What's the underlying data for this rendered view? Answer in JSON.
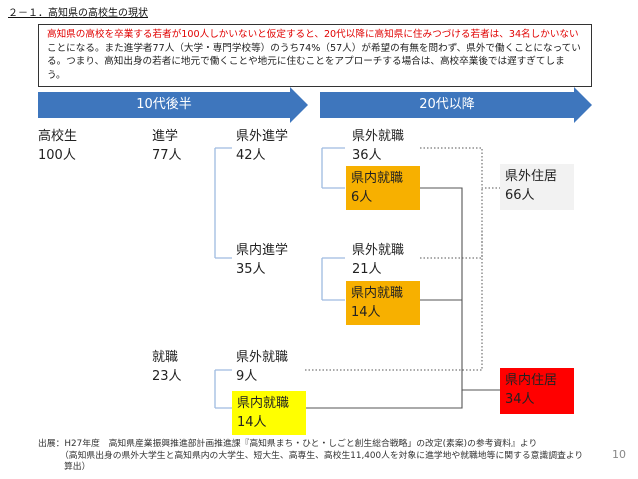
{
  "title": "２－１．高知県の高校生の現状",
  "summary": {
    "red_part": "高知県の高校を卒業する若者が100人しかいないと仮定すると、20代以降に高知県に住みつづける若者は、34名しかいない",
    "rest": "ことになる。また進学者77人（大学・専門学校等）のうち74%（57人）が希望の有無を問わず、県外で働くことになっている。つまり、高知出身の若者に地元で働くことや地元に住むことをアプローチする場合は、高校卒業後では遅すぎてしまう。"
  },
  "arrows": {
    "first": "10代後半",
    "second": "20代以降"
  },
  "nodes": {
    "hs": {
      "name": "高校生",
      "count": "100人"
    },
    "adv": {
      "name": "進学",
      "count": "77人"
    },
    "job": {
      "name": "就職",
      "count": "23人"
    },
    "out_adv": {
      "name": "県外進学",
      "count": "42人"
    },
    "in_adv": {
      "name": "県内進学",
      "count": "35人"
    },
    "out_job": {
      "name": "県外就職",
      "count": "9人"
    },
    "in_job": {
      "name": "県内就職",
      "count": "14人"
    },
    "o_o_job": {
      "name": "県外就職",
      "count": "36人"
    },
    "o_i_job": {
      "name": "県内就職",
      "count": "6人"
    },
    "i_o_job": {
      "name": "県外就職",
      "count": "21人"
    },
    "i_i_job": {
      "name": "県内就職",
      "count": "14人"
    },
    "out_res": {
      "name": "県外住居",
      "count": "66人"
    },
    "in_res": {
      "name": "県内住居",
      "count": "34人"
    }
  },
  "source": {
    "line1": "出展：H27年度　高知県産業振興推進部計画推進課『高知県まち・ひと・しごと創生総合戦略」の改定(素案)の参考資料』より",
    "line2": "（高知県出身の県外大学生と高知県内の大学生、短大生、高専生、高校生11,400人を対象に進学地や就職地等に関する意識調査より",
    "line3": "算出）"
  },
  "page_number": "10",
  "colors": {
    "arrow": "#3e76bd",
    "highlight_text": "#e00000",
    "orange": "#f7b000",
    "yellow": "#ffff00",
    "red": "#ff0000"
  }
}
